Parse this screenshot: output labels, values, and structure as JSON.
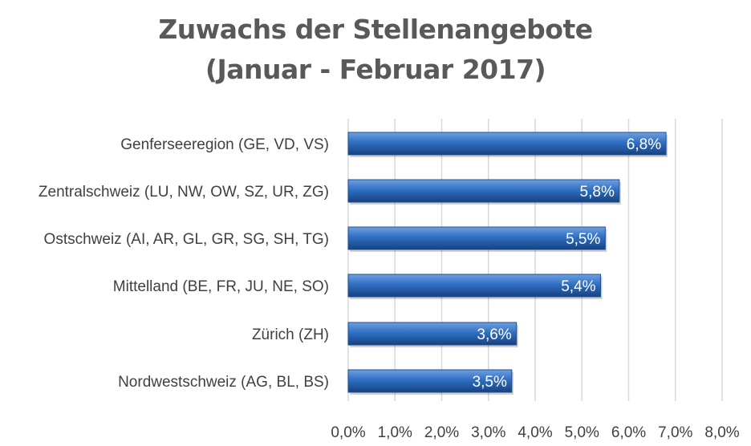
{
  "chart_data": {
    "type": "bar",
    "orientation": "horizontal",
    "title_line1": "Zuwachs der Stellenangebote",
    "title_line2": "(Januar - Februar 2017)",
    "categories": [
      "Genferseeregion (GE, VD, VS)",
      "Zentralschweiz (LU, NW, OW, SZ, UR, ZG)",
      "Ostschweiz (AI, AR, GL, GR, SG, SH, TG)",
      "Mittelland (BE, FR, JU, NE, SO)",
      "Zürich (ZH)",
      "Nordwestschweiz (AG, BL, BS)"
    ],
    "values": [
      6.8,
      5.8,
      5.5,
      5.4,
      3.6,
      3.5
    ],
    "data_labels": [
      "6,8%",
      "5,8%",
      "5,5%",
      "5,4%",
      "3,6%",
      "3,5%"
    ],
    "xlim": [
      0,
      8
    ],
    "xticks": [
      0,
      1,
      2,
      3,
      4,
      5,
      6,
      7,
      8
    ],
    "xtick_labels": [
      "0,0%",
      "1,0%",
      "2,0%",
      "3,0%",
      "4,0%",
      "5,0%",
      "6,0%",
      "7,0%",
      "8,0%"
    ],
    "grid": "vertical",
    "legend": "none",
    "colors": {
      "bar_light": "#6fa0de",
      "bar_mid": "#2f6fc4",
      "bar_dark": "#17427f",
      "grid": "#d9d9d9",
      "text": "#404040",
      "title": "#595959"
    }
  }
}
